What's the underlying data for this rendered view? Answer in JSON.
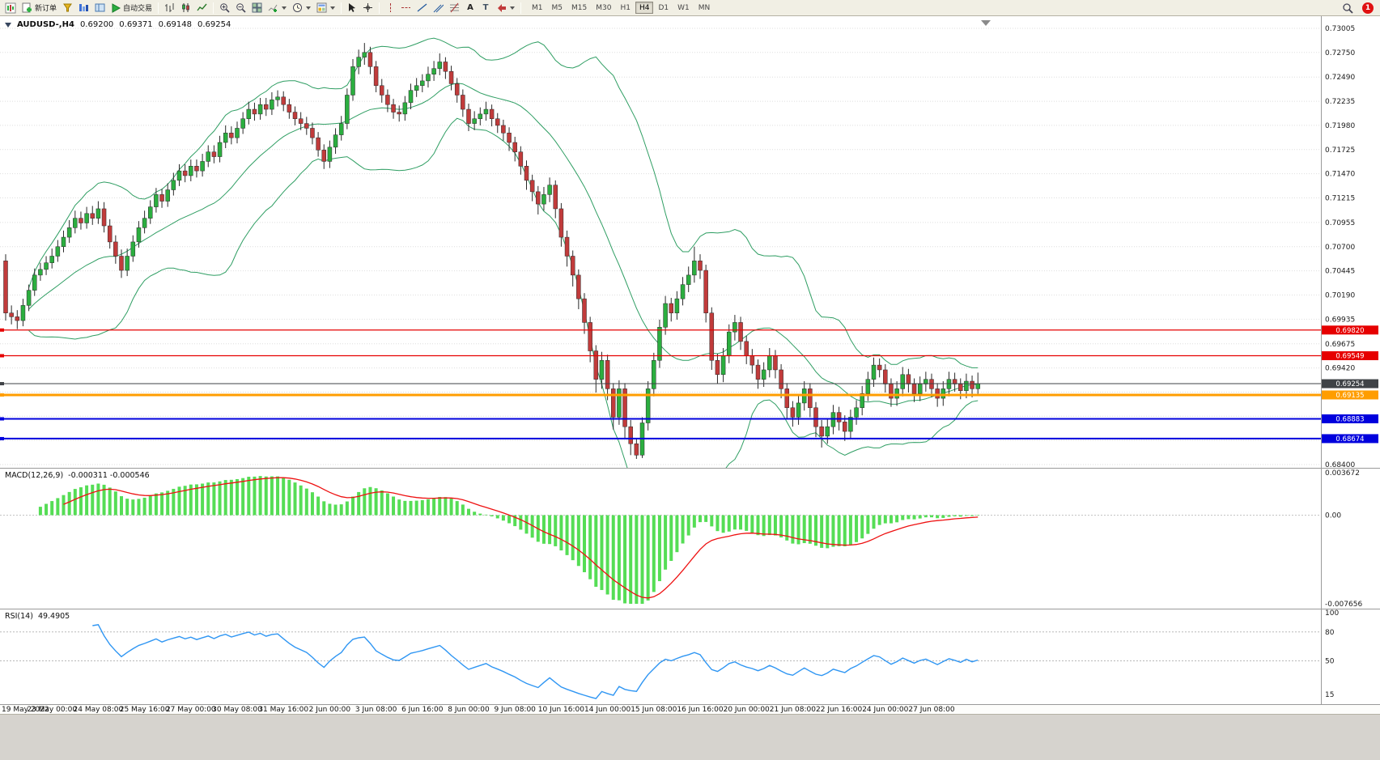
{
  "toolbar": {
    "new_order_label": "新订单",
    "autotrade_label": "自动交易",
    "text_tool_glyph": "A",
    "label_tool_glyph": "T",
    "timeframes": [
      "M1",
      "M5",
      "M15",
      "M30",
      "H1",
      "H4",
      "D1",
      "W1",
      "MN"
    ],
    "active_timeframe": "H4",
    "notification_count": "1"
  },
  "chart_header": {
    "symbol_title": "AUDUSD-,H4",
    "open": "0.69200",
    "high": "0.69371",
    "low": "0.69148",
    "close": "0.69254"
  },
  "colors": {
    "panel_bg": "#ffffff",
    "grid": "#dedede",
    "axis_text": "#1a1a1a",
    "bull": "#2bae3f",
    "bear": "#c13b3b",
    "wick": "#2a2a2a",
    "bollinger": "#2f9e63",
    "macd_hist": "#55dd55",
    "macd_signal": "#ee1111",
    "rsi_line": "#2f96f3",
    "splitter": "#9a9a9a"
  },
  "chart_data": {
    "type": "candlestick",
    "symbol": "AUDUSD",
    "timeframe": "H4",
    "y_max": 0.7309,
    "y_min": 0.68383,
    "price_axis_labels": [
      "0.73005",
      "0.72750",
      "0.72490",
      "0.72235",
      "0.71980",
      "0.71725",
      "0.71470",
      "0.71215",
      "0.70955",
      "0.70700",
      "0.70445",
      "0.70190",
      "0.69935",
      "0.69675",
      "0.69420",
      "0.68400"
    ],
    "price_grid_extra": [
      0.69165,
      0.6891,
      0.68655
    ],
    "time_labels": [
      "19 May 2022",
      "23 May 00:00",
      "24 May 08:00",
      "25 May 16:00",
      "27 May 00:00",
      "30 May 08:00",
      "31 May 16:00",
      "2 Jun 00:00",
      "3 Jun 08:00",
      "6 Jun 16:00",
      "8 Jun 00:00",
      "9 Jun 08:00",
      "10 Jun 16:00",
      "14 Jun 00:00",
      "15 Jun 08:00",
      "16 Jun 16:00",
      "20 Jun 00:00",
      "21 Jun 08:00",
      "22 Jun 16:00",
      "24 Jun 00:00",
      "27 Jun 08:00"
    ],
    "bars_per_time_label": 8,
    "bollinger": {
      "period": 20,
      "deviations": 2
    },
    "hlines": [
      {
        "value": 0.6982,
        "label": "0.69820",
        "color": "#e60000",
        "width": 1.2
      },
      {
        "value": 0.69549,
        "label": "0.69549",
        "color": "#e60000",
        "width": 1.2
      },
      {
        "value": 0.69254,
        "label": "0.69254",
        "color": "#3f4246",
        "width": 1
      },
      {
        "value": 0.69135,
        "label": "0.69135",
        "color": "#ff9d00",
        "width": 3
      },
      {
        "value": 0.68883,
        "label": "0.68883",
        "color": "#0000dd",
        "width": 2
      },
      {
        "value": 0.68674,
        "label": "0.68674",
        "color": "#0000dd",
        "width": 2
      }
    ],
    "macd": {
      "title": "MACD(12,26,9)",
      "current_values": "-0.000311 -0.000546",
      "fast": 12,
      "slow": 26,
      "signal": 9,
      "scale_max": 0.003672,
      "scale_min": -0.007656,
      "axis_labels": [
        {
          "v": 0.003672,
          "t": "0.003672"
        },
        {
          "v": 0,
          "t": "0.00"
        },
        {
          "v": -0.007656,
          "t": "-0.007656"
        }
      ]
    },
    "rsi": {
      "title": "RSI(14)",
      "current_value": "49.4905",
      "period": 14,
      "scale_max": 100,
      "scale_min": 10,
      "levels": [
        80,
        50
      ],
      "axis_labels": [
        {
          "v": 100,
          "t": "100"
        },
        {
          "v": 80,
          "t": "80"
        },
        {
          "v": 50,
          "t": "50"
        },
        {
          "v": 15,
          "t": "15"
        }
      ]
    },
    "candles": [
      [
        0.7055,
        0.7062,
        0.6992,
        0.7
      ],
      [
        0.7,
        0.7008,
        0.6988,
        0.6996
      ],
      [
        0.6996,
        0.7003,
        0.6983,
        0.6992
      ],
      [
        0.6992,
        0.7015,
        0.6986,
        0.7008
      ],
      [
        0.7008,
        0.703,
        0.7002,
        0.7024
      ],
      [
        0.7024,
        0.7047,
        0.7018,
        0.704
      ],
      [
        0.704,
        0.7053,
        0.7034,
        0.7046
      ],
      [
        0.7046,
        0.706,
        0.704,
        0.7053
      ],
      [
        0.7053,
        0.7068,
        0.7047,
        0.706
      ],
      [
        0.706,
        0.7077,
        0.7054,
        0.707
      ],
      [
        0.707,
        0.7087,
        0.7064,
        0.708
      ],
      [
        0.708,
        0.7098,
        0.7074,
        0.709
      ],
      [
        0.709,
        0.7108,
        0.7084,
        0.71
      ],
      [
        0.71,
        0.7107,
        0.7088,
        0.7095
      ],
      [
        0.7095,
        0.7112,
        0.7089,
        0.7105
      ],
      [
        0.7105,
        0.7113,
        0.7093,
        0.71
      ],
      [
        0.71,
        0.7118,
        0.7094,
        0.711
      ],
      [
        0.711,
        0.7117,
        0.7085,
        0.7092
      ],
      [
        0.7092,
        0.7099,
        0.7068,
        0.7075
      ],
      [
        0.7075,
        0.7082,
        0.7052,
        0.706
      ],
      [
        0.706,
        0.7067,
        0.7037,
        0.7045
      ],
      [
        0.7045,
        0.7068,
        0.7039,
        0.706
      ],
      [
        0.706,
        0.7082,
        0.7054,
        0.7075
      ],
      [
        0.7075,
        0.7097,
        0.7069,
        0.709
      ],
      [
        0.709,
        0.7108,
        0.7084,
        0.71
      ],
      [
        0.71,
        0.7119,
        0.7094,
        0.7112
      ],
      [
        0.7112,
        0.7132,
        0.7106,
        0.7125
      ],
      [
        0.7125,
        0.7131,
        0.7111,
        0.7118
      ],
      [
        0.7118,
        0.7137,
        0.7112,
        0.713
      ],
      [
        0.713,
        0.7148,
        0.7124,
        0.714
      ],
      [
        0.714,
        0.7157,
        0.7134,
        0.715
      ],
      [
        0.715,
        0.7157,
        0.7138,
        0.7145
      ],
      [
        0.7145,
        0.7162,
        0.7139,
        0.7155
      ],
      [
        0.7155,
        0.7162,
        0.7143,
        0.715
      ],
      [
        0.715,
        0.7168,
        0.7144,
        0.716
      ],
      [
        0.716,
        0.7177,
        0.7154,
        0.717
      ],
      [
        0.717,
        0.7177,
        0.7158,
        0.7165
      ],
      [
        0.7165,
        0.7187,
        0.7159,
        0.718
      ],
      [
        0.718,
        0.7198,
        0.7174,
        0.719
      ],
      [
        0.719,
        0.7197,
        0.7178,
        0.7185
      ],
      [
        0.7185,
        0.7202,
        0.7179,
        0.7195
      ],
      [
        0.7195,
        0.7212,
        0.7189,
        0.7205
      ],
      [
        0.7205,
        0.7223,
        0.7199,
        0.7215
      ],
      [
        0.7215,
        0.7222,
        0.7203,
        0.721
      ],
      [
        0.721,
        0.7227,
        0.7204,
        0.722
      ],
      [
        0.722,
        0.7227,
        0.7208,
        0.7215
      ],
      [
        0.7215,
        0.7233,
        0.7209,
        0.7225
      ],
      [
        0.7225,
        0.7235,
        0.7218,
        0.7228
      ],
      [
        0.7228,
        0.7234,
        0.7213,
        0.722
      ],
      [
        0.722,
        0.7226,
        0.7205,
        0.7212
      ],
      [
        0.7212,
        0.7218,
        0.7198,
        0.7205
      ],
      [
        0.7205,
        0.7212,
        0.7193,
        0.72
      ],
      [
        0.72,
        0.7207,
        0.7188,
        0.7195
      ],
      [
        0.7195,
        0.7201,
        0.7178,
        0.7185
      ],
      [
        0.7185,
        0.7191,
        0.7165,
        0.7172
      ],
      [
        0.7172,
        0.7178,
        0.7152,
        0.716
      ],
      [
        0.716,
        0.7182,
        0.7153,
        0.7175
      ],
      [
        0.7175,
        0.7195,
        0.7168,
        0.7188
      ],
      [
        0.7188,
        0.7208,
        0.7182,
        0.72
      ],
      [
        0.72,
        0.7237,
        0.7194,
        0.723
      ],
      [
        0.723,
        0.7268,
        0.7224,
        0.726
      ],
      [
        0.726,
        0.7278,
        0.7252,
        0.727
      ],
      [
        0.727,
        0.7285,
        0.7262,
        0.7275
      ],
      [
        0.7275,
        0.7281,
        0.7252,
        0.726
      ],
      [
        0.726,
        0.7266,
        0.7233,
        0.724
      ],
      [
        0.724,
        0.7247,
        0.7222,
        0.723
      ],
      [
        0.723,
        0.7236,
        0.7212,
        0.722
      ],
      [
        0.722,
        0.7226,
        0.7205,
        0.7212
      ],
      [
        0.7212,
        0.7219,
        0.7202,
        0.721
      ],
      [
        0.721,
        0.7229,
        0.7203,
        0.7222
      ],
      [
        0.7222,
        0.7242,
        0.7215,
        0.7235
      ],
      [
        0.7235,
        0.7248,
        0.7228,
        0.724
      ],
      [
        0.724,
        0.7252,
        0.7233,
        0.7245
      ],
      [
        0.7245,
        0.726,
        0.7238,
        0.7252
      ],
      [
        0.7252,
        0.7266,
        0.7245,
        0.7258
      ],
      [
        0.7258,
        0.7274,
        0.7251,
        0.7265
      ],
      [
        0.7265,
        0.727,
        0.7247,
        0.7255
      ],
      [
        0.7255,
        0.7261,
        0.7235,
        0.7242
      ],
      [
        0.7242,
        0.7248,
        0.7222,
        0.723
      ],
      [
        0.723,
        0.7236,
        0.7207,
        0.7215
      ],
      [
        0.7215,
        0.7221,
        0.7192,
        0.72
      ],
      [
        0.72,
        0.7213,
        0.7193,
        0.7205
      ],
      [
        0.7205,
        0.7217,
        0.7198,
        0.721
      ],
      [
        0.721,
        0.7223,
        0.7203,
        0.7215
      ],
      [
        0.7215,
        0.722,
        0.7197,
        0.7205
      ],
      [
        0.7205,
        0.7211,
        0.719,
        0.7198
      ],
      [
        0.7198,
        0.7204,
        0.7182,
        0.719
      ],
      [
        0.719,
        0.7196,
        0.7171,
        0.718
      ],
      [
        0.718,
        0.7186,
        0.716,
        0.717
      ],
      [
        0.717,
        0.7176,
        0.7146,
        0.7155
      ],
      [
        0.7155,
        0.7161,
        0.713,
        0.714
      ],
      [
        0.714,
        0.7146,
        0.7118,
        0.7128
      ],
      [
        0.7128,
        0.7134,
        0.7104,
        0.7115
      ],
      [
        0.7115,
        0.7133,
        0.7108,
        0.7125
      ],
      [
        0.7125,
        0.7143,
        0.7117,
        0.7135
      ],
      [
        0.7135,
        0.714,
        0.71,
        0.711
      ],
      [
        0.711,
        0.7116,
        0.707,
        0.708
      ],
      [
        0.708,
        0.7087,
        0.7049,
        0.706
      ],
      [
        0.706,
        0.7066,
        0.7028,
        0.704
      ],
      [
        0.704,
        0.7046,
        0.7004,
        0.7015
      ],
      [
        0.7015,
        0.7021,
        0.6978,
        0.699
      ],
      [
        0.699,
        0.6996,
        0.6948,
        0.696
      ],
      [
        0.696,
        0.6966,
        0.6916,
        0.693
      ],
      [
        0.693,
        0.6959,
        0.692,
        0.695
      ],
      [
        0.695,
        0.6956,
        0.6908,
        0.692
      ],
      [
        0.692,
        0.6926,
        0.6877,
        0.689
      ],
      [
        0.689,
        0.6929,
        0.6882,
        0.692
      ],
      [
        0.692,
        0.6926,
        0.6868,
        0.688
      ],
      [
        0.688,
        0.6887,
        0.685,
        0.6862
      ],
      [
        0.6862,
        0.6868,
        0.6846,
        0.685
      ],
      [
        0.685,
        0.689,
        0.6847,
        0.6884
      ],
      [
        0.6884,
        0.6928,
        0.6876,
        0.692
      ],
      [
        0.692,
        0.6958,
        0.6912,
        0.695
      ],
      [
        0.695,
        0.6993,
        0.6942,
        0.6985
      ],
      [
        0.6985,
        0.7018,
        0.6977,
        0.701
      ],
      [
        0.701,
        0.7016,
        0.6991,
        0.7
      ],
      [
        0.7,
        0.7023,
        0.6993,
        0.7015
      ],
      [
        0.7015,
        0.7038,
        0.7008,
        0.703
      ],
      [
        0.703,
        0.7049,
        0.7022,
        0.704
      ],
      [
        0.704,
        0.707,
        0.7032,
        0.7055
      ],
      [
        0.7055,
        0.7062,
        0.7036,
        0.7045
      ],
      [
        0.7045,
        0.7051,
        0.699,
        0.7
      ],
      [
        0.7,
        0.7006,
        0.694,
        0.695
      ],
      [
        0.695,
        0.6957,
        0.6925,
        0.6935
      ],
      [
        0.6935,
        0.6963,
        0.6927,
        0.6955
      ],
      [
        0.6955,
        0.6988,
        0.6947,
        0.698
      ],
      [
        0.698,
        0.6998,
        0.6971,
        0.699
      ],
      [
        0.699,
        0.6996,
        0.6961,
        0.697
      ],
      [
        0.697,
        0.6976,
        0.6946,
        0.6955
      ],
      [
        0.6955,
        0.6962,
        0.6936,
        0.6945
      ],
      [
        0.6945,
        0.6951,
        0.692,
        0.693
      ],
      [
        0.693,
        0.6948,
        0.6922,
        0.694
      ],
      [
        0.694,
        0.6963,
        0.6932,
        0.6955
      ],
      [
        0.6955,
        0.6961,
        0.6931,
        0.694
      ],
      [
        0.694,
        0.6946,
        0.691,
        0.692
      ],
      [
        0.692,
        0.6926,
        0.6889,
        0.69
      ],
      [
        0.69,
        0.6907,
        0.688,
        0.689
      ],
      [
        0.689,
        0.6913,
        0.6882,
        0.6905
      ],
      [
        0.6905,
        0.6928,
        0.6897,
        0.692
      ],
      [
        0.692,
        0.6926,
        0.689,
        0.69
      ],
      [
        0.69,
        0.6906,
        0.6869,
        0.688
      ],
      [
        0.688,
        0.6887,
        0.6858,
        0.687
      ],
      [
        0.687,
        0.6888,
        0.6862,
        0.688
      ],
      [
        0.688,
        0.6903,
        0.6872,
        0.6895
      ],
      [
        0.6895,
        0.6901,
        0.6876,
        0.6885
      ],
      [
        0.6885,
        0.6892,
        0.6865,
        0.6875
      ],
      [
        0.6875,
        0.6898,
        0.6867,
        0.689
      ],
      [
        0.689,
        0.6908,
        0.6882,
        0.69
      ],
      [
        0.69,
        0.6923,
        0.6892,
        0.6915
      ],
      [
        0.6915,
        0.6938,
        0.6907,
        0.693
      ],
      [
        0.693,
        0.6953,
        0.6922,
        0.6945
      ],
      [
        0.6945,
        0.6952,
        0.6932,
        0.694
      ],
      [
        0.694,
        0.6946,
        0.6916,
        0.6925
      ],
      [
        0.6925,
        0.6931,
        0.6901,
        0.691
      ],
      [
        0.691,
        0.6928,
        0.6902,
        0.692
      ],
      [
        0.692,
        0.6943,
        0.6912,
        0.6935
      ],
      [
        0.6935,
        0.6941,
        0.6916,
        0.6925
      ],
      [
        0.6925,
        0.6931,
        0.6906,
        0.6915
      ],
      [
        0.6915,
        0.6933,
        0.6907,
        0.6925
      ],
      [
        0.6925,
        0.6938,
        0.6917,
        0.693
      ],
      [
        0.693,
        0.6936,
        0.6911,
        0.692
      ],
      [
        0.692,
        0.6926,
        0.6901,
        0.691
      ],
      [
        0.691,
        0.6928,
        0.6902,
        0.692
      ],
      [
        0.692,
        0.6938,
        0.6912,
        0.693
      ],
      [
        0.693,
        0.6937,
        0.6917,
        0.6925
      ],
      [
        0.6925,
        0.6931,
        0.6909,
        0.6918
      ],
      [
        0.6918,
        0.6936,
        0.691,
        0.6928
      ],
      [
        0.6928,
        0.6934,
        0.6911,
        0.692
      ],
      [
        0.692,
        0.69371,
        0.69148,
        0.69254
      ]
    ]
  }
}
